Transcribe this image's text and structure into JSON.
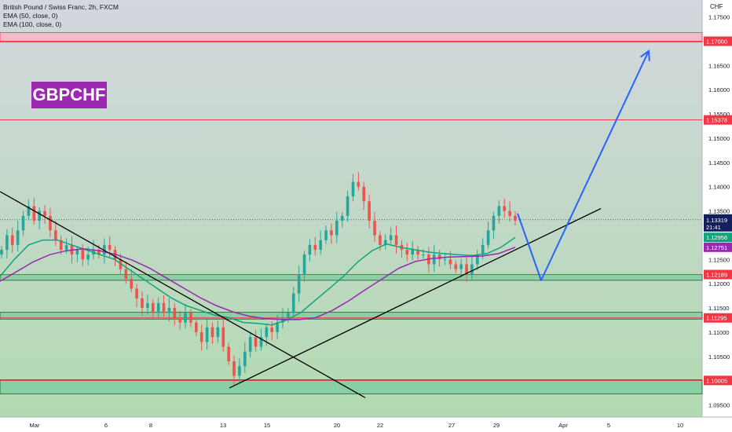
{
  "legend": {
    "title": "British Pound / Swiss Franc, 2h, FXCM",
    "ema50": "EMA (50, close, 0)",
    "ema100": "EMA (100, close, 0)"
  },
  "symbol_badge": "GBPCHF",
  "currency": "CHF",
  "colors": {
    "background_top": "#d3d7de",
    "background_bottom": "#b2dab1",
    "up": "#26a69a",
    "down": "#ef5350",
    "ema50": "#0ea57a",
    "ema100": "#9c27b0",
    "resistance_zone": "#f5b8c4",
    "support_zone": "#7ccaa0",
    "red_line": "#f23645",
    "arrow": "#2962ff",
    "current_price": "#131e5c"
  },
  "chart_data": {
    "type": "candlestick",
    "ylim": [
      1.0925,
      1.1785
    ],
    "y_ticks": [
      "1.17500",
      "1.16500",
      "1.16000",
      "1.15500",
      "1.15000",
      "1.14500",
      "1.14000",
      "1.13500",
      "1.12500",
      "1.12000",
      "1.11500",
      "1.11000",
      "1.10500",
      "1.09500"
    ],
    "x_ticks": [
      "Mar",
      "6",
      "8",
      "13",
      "15",
      "20",
      "22",
      "27",
      "29",
      "Apr",
      "5",
      "10"
    ],
    "price_labels": [
      {
        "value": "1.17000",
        "kind": "red"
      },
      {
        "value": "1.15378",
        "kind": "red"
      },
      {
        "value": "1.12956",
        "kind": "ema50"
      },
      {
        "value": "1.12751",
        "kind": "ema100"
      },
      {
        "value": "1.12189",
        "kind": "red"
      },
      {
        "value": "1.11295",
        "kind": "red"
      },
      {
        "value": "1.10005",
        "kind": "red"
      }
    ],
    "current_price": {
      "value": "1.13319",
      "countdown": "21:41"
    },
    "zones": [
      {
        "type": "resistance",
        "from": 1.1698,
        "to": 1.1718
      },
      {
        "type": "support",
        "from": 1.1207,
        "to": 1.1219
      },
      {
        "type": "support",
        "from": 1.1127,
        "to": 1.1141
      },
      {
        "type": "support",
        "from": 1.0973,
        "to": 1.1002
      }
    ],
    "horizontal_lines": [
      1.17,
      1.15378,
      1.12189,
      1.11295,
      1.10005
    ],
    "close_path": [
      1.127,
      1.13,
      1.128,
      1.131,
      1.134,
      1.136,
      1.133,
      1.135,
      1.134,
      1.131,
      1.129,
      1.127,
      1.128,
      1.126,
      1.127,
      1.125,
      1.126,
      1.127,
      1.126,
      1.128,
      1.127,
      1.125,
      1.123,
      1.121,
      1.119,
      1.117,
      1.115,
      1.116,
      1.114,
      1.116,
      1.114,
      1.115,
      1.113,
      1.112,
      1.114,
      1.112,
      1.11,
      1.108,
      1.111,
      1.109,
      1.111,
      1.107,
      1.104,
      1.101,
      1.103,
      1.106,
      1.109,
      1.107,
      1.109,
      1.111,
      1.11,
      1.112,
      1.113,
      1.114,
      1.118,
      1.122,
      1.126,
      1.128,
      1.127,
      1.129,
      1.131,
      1.13,
      1.133,
      1.134,
      1.138,
      1.141,
      1.14,
      1.137,
      1.133,
      1.13,
      1.128,
      1.129,
      1.13,
      1.128,
      1.127,
      1.126,
      1.127,
      1.126,
      1.126,
      1.124,
      1.126,
      1.125,
      1.125,
      1.124,
      1.123,
      1.124,
      1.122,
      1.124,
      1.126,
      1.128,
      1.131,
      1.134,
      1.136,
      1.135,
      1.134,
      1.133
    ],
    "ema50_values": [
      1.1215,
      1.125,
      1.128,
      1.129,
      1.129,
      1.128,
      1.127,
      1.126,
      1.125,
      1.123,
      1.121,
      1.119,
      1.117,
      1.1155,
      1.1145,
      1.1135,
      1.113,
      1.112,
      1.1118,
      1.1115,
      1.1125,
      1.114,
      1.1165,
      1.119,
      1.1215,
      1.1245,
      1.1268,
      1.1282,
      1.1275,
      1.127,
      1.1265,
      1.1262,
      1.126,
      1.1258,
      1.1262,
      1.1275,
      1.12956
    ],
    "ema100_values": [
      1.1205,
      1.1225,
      1.1245,
      1.126,
      1.1268,
      1.1272,
      1.1268,
      1.126,
      1.1248,
      1.1232,
      1.1212,
      1.1192,
      1.1172,
      1.1155,
      1.1142,
      1.1133,
      1.1128,
      1.1126,
      1.1126,
      1.113,
      1.1145,
      1.1165,
      1.1188,
      1.121,
      1.1232,
      1.1246,
      1.1252,
      1.1255,
      1.1256,
      1.1257,
      1.1262,
      1.12751
    ],
    "trendline_down": [
      {
        "x": 0,
        "y": 1.139
      },
      {
        "x": 465,
        "y": 1.0965
      }
    ],
    "trendline_up": [
      {
        "x": 292,
        "y": 1.0985
      },
      {
        "x": 765,
        "y": 1.1355
      }
    ],
    "projection": [
      {
        "x": 659,
        "y": 1.1345
      },
      {
        "x": 689,
        "y": 1.1207
      },
      {
        "x": 826,
        "y": 1.168
      }
    ]
  }
}
